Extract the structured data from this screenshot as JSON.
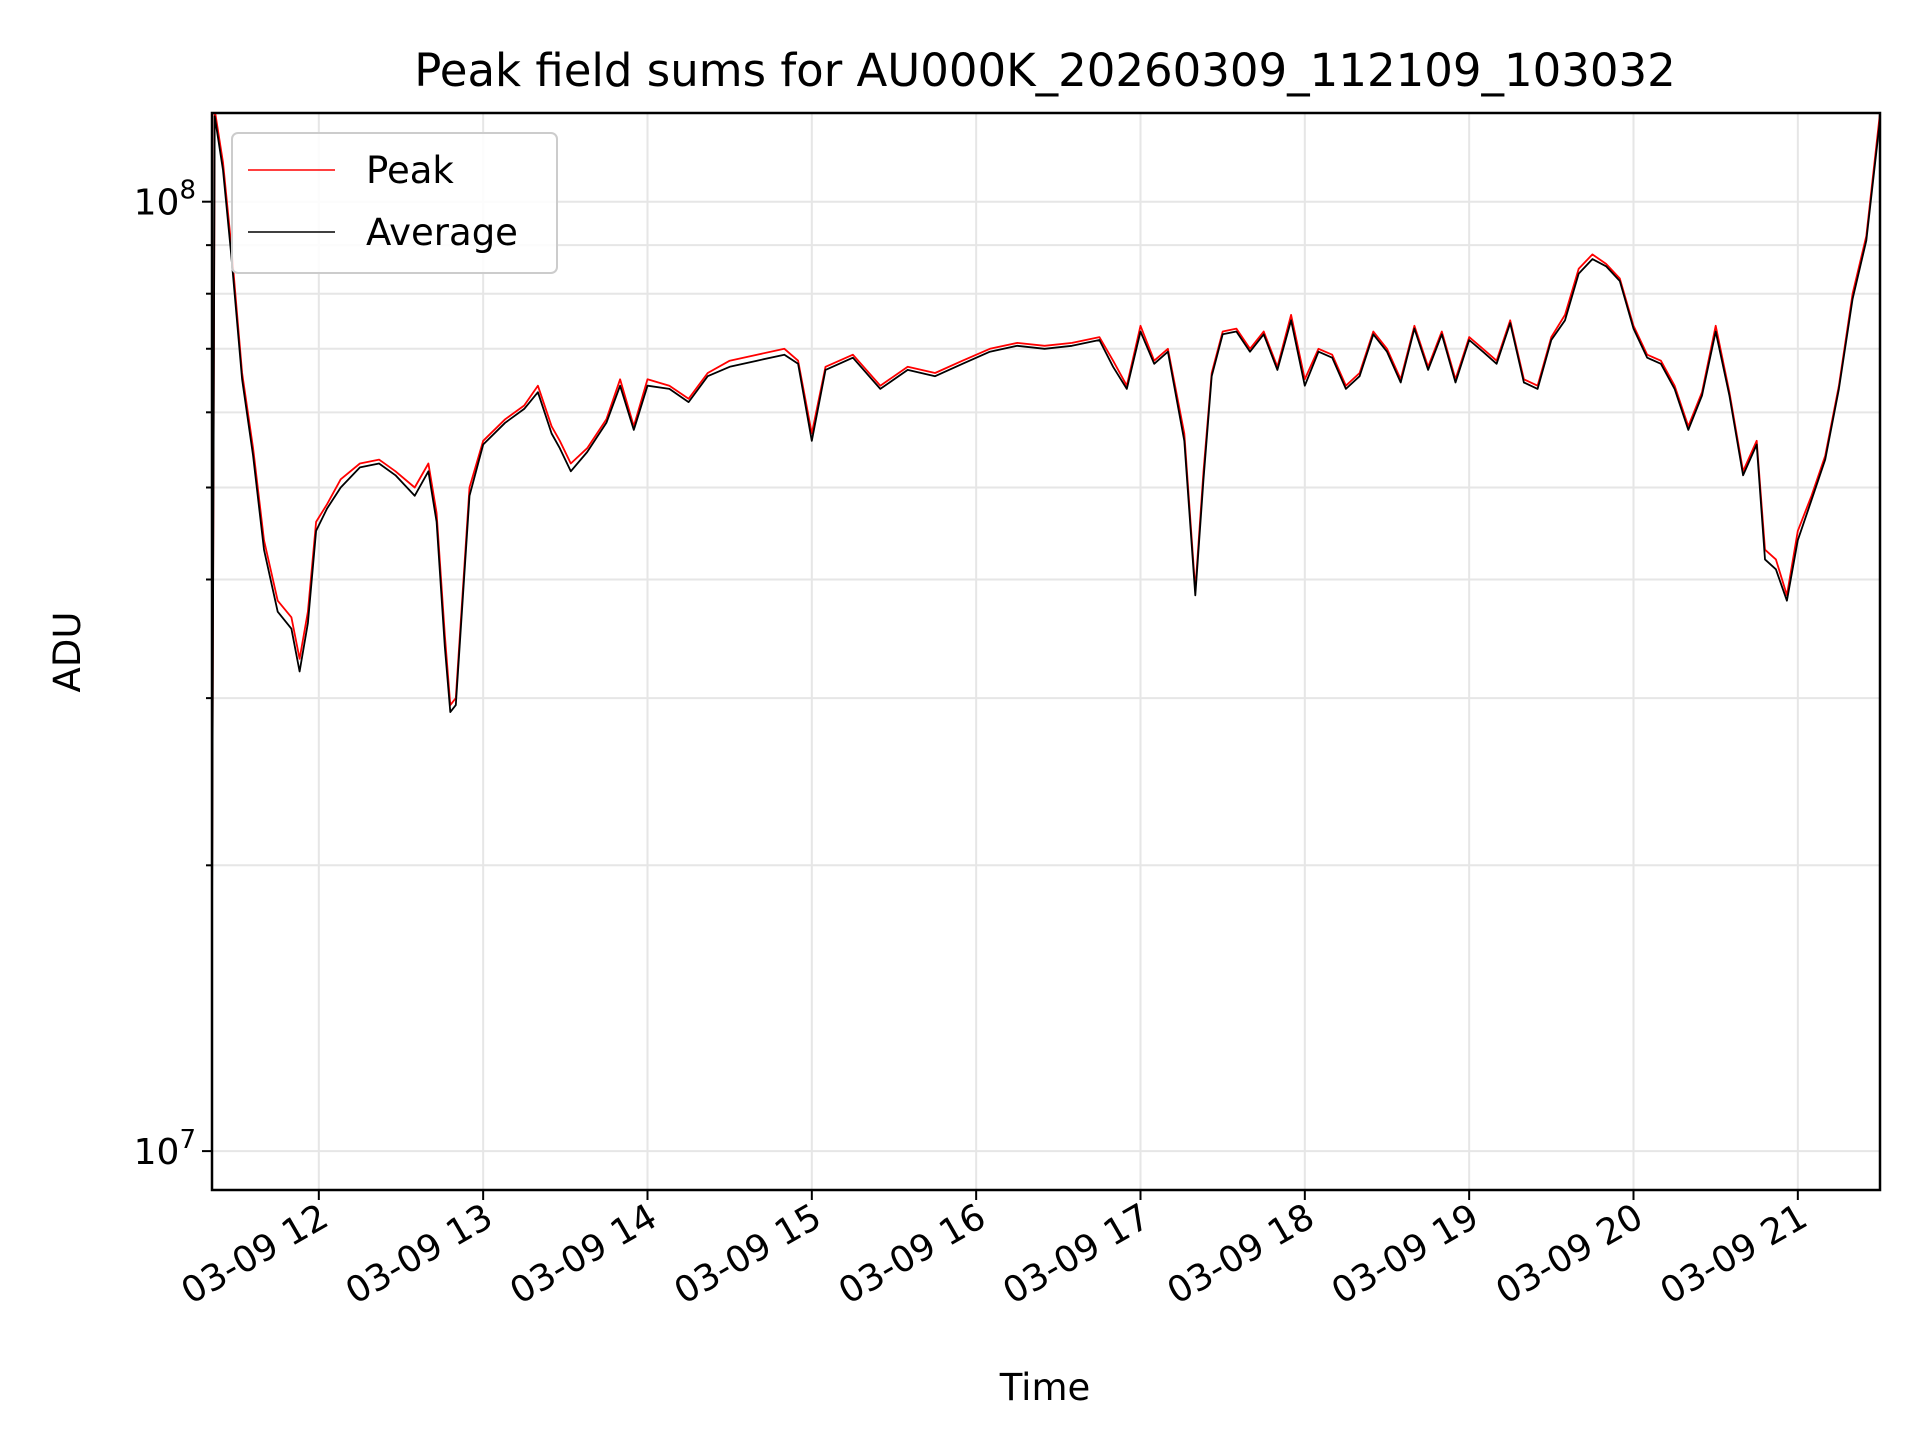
{
  "chart_data": {
    "type": "line",
    "title": "Peak field sums for AU000K_20260309_112109_103032",
    "xlabel": "Time",
    "ylabel": "ADU",
    "y_scale": "log",
    "ylim": [
      9100000,
      124000000
    ],
    "xlim": [
      "03-09 11:21",
      "03-09 21:30"
    ],
    "x_ticks": [
      "03-09 12",
      "03-09 13",
      "03-09 14",
      "03-09 15",
      "03-09 16",
      "03-09 17",
      "03-09 18",
      "03-09 19",
      "03-09 20",
      "03-09 21"
    ],
    "y_ticks": [
      {
        "value": 10000000,
        "base": "10",
        "exp": "7"
      },
      {
        "value": 100000000,
        "base": "10",
        "exp": "8"
      }
    ],
    "grid": true,
    "legend": "top-left",
    "series": [
      {
        "name": "Peak",
        "color": "#ff0000",
        "x": [
          "03-09 11:21",
          "03-09 11:22",
          "03-09 11:25",
          "03-09 11:28",
          "03-09 11:32",
          "03-09 11:36",
          "03-09 11:40",
          "03-09 11:45",
          "03-09 11:50",
          "03-09 11:53",
          "03-09 11:56",
          "03-09 11:59",
          "03-09 12:03",
          "03-09 12:08",
          "03-09 12:15",
          "03-09 12:22",
          "03-09 12:28",
          "03-09 12:35",
          "03-09 12:40",
          "03-09 12:43",
          "03-09 12:46",
          "03-09 12:48",
          "03-09 12:50",
          "03-09 12:55",
          "03-09 13:00",
          "03-09 13:08",
          "03-09 13:15",
          "03-09 13:20",
          "03-09 13:25",
          "03-09 13:28",
          "03-09 13:32",
          "03-09 13:38",
          "03-09 13:45",
          "03-09 13:50",
          "03-09 13:55",
          "03-09 14:00",
          "03-09 14:08",
          "03-09 14:15",
          "03-09 14:22",
          "03-09 14:30",
          "03-09 14:40",
          "03-09 14:50",
          "03-09 14:55",
          "03-09 15:00",
          "03-09 15:05",
          "03-09 15:15",
          "03-09 15:25",
          "03-09 15:35",
          "03-09 15:45",
          "03-09 15:55",
          "03-09 16:05",
          "03-09 16:15",
          "03-09 16:25",
          "03-09 16:35",
          "03-09 16:45",
          "03-09 16:50",
          "03-09 16:55",
          "03-09 17:00",
          "03-09 17:05",
          "03-09 17:10",
          "03-09 17:16",
          "03-09 17:20",
          "03-09 17:23",
          "03-09 17:26",
          "03-09 17:30",
          "03-09 17:35",
          "03-09 17:40",
          "03-09 17:45",
          "03-09 17:50",
          "03-09 17:55",
          "03-09 18:00",
          "03-09 18:05",
          "03-09 18:10",
          "03-09 18:15",
          "03-09 18:20",
          "03-09 18:25",
          "03-09 18:30",
          "03-09 18:35",
          "03-09 18:40",
          "03-09 18:45",
          "03-09 18:50",
          "03-09 18:55",
          "03-09 19:00",
          "03-09 19:05",
          "03-09 19:10",
          "03-09 19:15",
          "03-09 19:20",
          "03-09 19:25",
          "03-09 19:30",
          "03-09 19:35",
          "03-09 19:40",
          "03-09 19:45",
          "03-09 19:50",
          "03-09 19:55",
          "03-09 20:00",
          "03-09 20:05",
          "03-09 20:10",
          "03-09 20:15",
          "03-09 20:20",
          "03-09 20:25",
          "03-09 20:30",
          "03-09 20:35",
          "03-09 20:40",
          "03-09 20:45",
          "03-09 20:48",
          "03-09 20:52",
          "03-09 20:56",
          "03-09 21:00",
          "03-09 21:05",
          "03-09 21:10",
          "03-09 21:15",
          "03-09 21:20",
          "03-09 21:25",
          "03-09 21:30"
        ],
        "values": [
          18000000,
          125000000,
          110000000,
          90000000,
          66000000,
          55000000,
          44000000,
          38000000,
          36500000,
          33000000,
          37000000,
          46000000,
          48000000,
          51000000,
          53000000,
          53500000,
          52000000,
          50000000,
          53000000,
          47000000,
          35000000,
          29500000,
          30000000,
          50000000,
          56000000,
          59000000,
          61000000,
          64000000,
          58000000,
          56000000,
          53000000,
          55000000,
          59000000,
          65000000,
          58000000,
          65000000,
          64000000,
          62000000,
          66000000,
          68000000,
          69000000,
          70000000,
          68000000,
          57000000,
          67000000,
          69000000,
          64000000,
          67000000,
          66000000,
          68000000,
          70000000,
          71000000,
          70500000,
          71000000,
          72000000,
          68000000,
          64000000,
          74000000,
          68000000,
          70000000,
          57000000,
          39000000,
          52000000,
          66000000,
          73000000,
          73500000,
          70000000,
          73000000,
          67000000,
          76000000,
          65000000,
          70000000,
          69000000,
          64000000,
          66000000,
          73000000,
          70000000,
          65000000,
          74000000,
          67000000,
          73000000,
          65000000,
          72000000,
          70000000,
          68000000,
          75000000,
          65000000,
          64000000,
          72000000,
          76000000,
          85000000,
          88000000,
          86000000,
          83000000,
          74000000,
          69000000,
          68000000,
          64000000,
          58000000,
          63000000,
          74000000,
          63000000,
          52000000,
          56000000,
          43000000,
          42000000,
          38500000,
          45000000,
          49000000,
          54000000,
          64000000,
          80000000,
          92000000,
          124000000
        ]
      },
      {
        "name": "Average",
        "color": "#000000",
        "x": [
          "03-09 11:21",
          "03-09 11:22",
          "03-09 11:25",
          "03-09 11:28",
          "03-09 11:32",
          "03-09 11:36",
          "03-09 11:40",
          "03-09 11:45",
          "03-09 11:50",
          "03-09 11:53",
          "03-09 11:56",
          "03-09 11:59",
          "03-09 12:03",
          "03-09 12:08",
          "03-09 12:15",
          "03-09 12:22",
          "03-09 12:28",
          "03-09 12:35",
          "03-09 12:40",
          "03-09 12:43",
          "03-09 12:46",
          "03-09 12:48",
          "03-09 12:50",
          "03-09 12:55",
          "03-09 13:00",
          "03-09 13:08",
          "03-09 13:15",
          "03-09 13:20",
          "03-09 13:25",
          "03-09 13:28",
          "03-09 13:32",
          "03-09 13:38",
          "03-09 13:45",
          "03-09 13:50",
          "03-09 13:55",
          "03-09 14:00",
          "03-09 14:08",
          "03-09 14:15",
          "03-09 14:22",
          "03-09 14:30",
          "03-09 14:40",
          "03-09 14:50",
          "03-09 14:55",
          "03-09 15:00",
          "03-09 15:05",
          "03-09 15:15",
          "03-09 15:25",
          "03-09 15:35",
          "03-09 15:45",
          "03-09 15:55",
          "03-09 16:05",
          "03-09 16:15",
          "03-09 16:25",
          "03-09 16:35",
          "03-09 16:45",
          "03-09 16:50",
          "03-09 16:55",
          "03-09 17:00",
          "03-09 17:05",
          "03-09 17:10",
          "03-09 17:16",
          "03-09 17:20",
          "03-09 17:23",
          "03-09 17:26",
          "03-09 17:30",
          "03-09 17:35",
          "03-09 17:40",
          "03-09 17:45",
          "03-09 17:50",
          "03-09 17:55",
          "03-09 18:00",
          "03-09 18:05",
          "03-09 18:10",
          "03-09 18:15",
          "03-09 18:20",
          "03-09 18:25",
          "03-09 18:30",
          "03-09 18:35",
          "03-09 18:40",
          "03-09 18:45",
          "03-09 18:50",
          "03-09 18:55",
          "03-09 19:00",
          "03-09 19:05",
          "03-09 19:10",
          "03-09 19:15",
          "03-09 19:20",
          "03-09 19:25",
          "03-09 19:30",
          "03-09 19:35",
          "03-09 19:40",
          "03-09 19:45",
          "03-09 19:50",
          "03-09 19:55",
          "03-09 20:00",
          "03-09 20:05",
          "03-09 20:10",
          "03-09 20:15",
          "03-09 20:20",
          "03-09 20:25",
          "03-09 20:30",
          "03-09 20:35",
          "03-09 20:40",
          "03-09 20:45",
          "03-09 20:48",
          "03-09 20:52",
          "03-09 20:56",
          "03-09 21:00",
          "03-09 21:05",
          "03-09 21:10",
          "03-09 21:15",
          "03-09 21:20",
          "03-09 21:25",
          "03-09 21:30"
        ],
        "values": [
          17500000,
          123000000,
          108000000,
          88000000,
          65000000,
          54000000,
          43000000,
          37000000,
          35500000,
          32000000,
          36000000,
          45000000,
          47500000,
          50000000,
          52500000,
          53000000,
          51500000,
          49000000,
          52000000,
          46000000,
          34000000,
          29000000,
          29500000,
          49000000,
          55500000,
          58500000,
          60500000,
          63000000,
          57000000,
          55000000,
          52000000,
          54500000,
          58500000,
          64000000,
          57500000,
          64000000,
          63500000,
          61500000,
          65500000,
          67000000,
          68000000,
          69000000,
          67500000,
          56000000,
          66500000,
          68500000,
          63500000,
          66500000,
          65500000,
          67500000,
          69500000,
          70500000,
          70000000,
          70500000,
          71500000,
          67000000,
          63500000,
          73000000,
          67500000,
          69500000,
          56000000,
          38500000,
          51000000,
          65500000,
          72500000,
          73000000,
          69500000,
          72500000,
          66500000,
          75000000,
          64000000,
          69500000,
          68500000,
          63500000,
          65500000,
          72500000,
          69500000,
          64500000,
          73500000,
          66500000,
          72500000,
          64500000,
          71500000,
          69500000,
          67500000,
          74500000,
          64500000,
          63500000,
          71500000,
          75000000,
          84000000,
          87000000,
          85500000,
          82500000,
          73500000,
          68500000,
          67500000,
          63500000,
          57500000,
          62500000,
          73000000,
          62500000,
          51500000,
          55500000,
          42000000,
          41000000,
          38000000,
          44000000,
          48500000,
          53500000,
          63500000,
          79000000,
          91000000,
          122000000
        ]
      }
    ]
  }
}
